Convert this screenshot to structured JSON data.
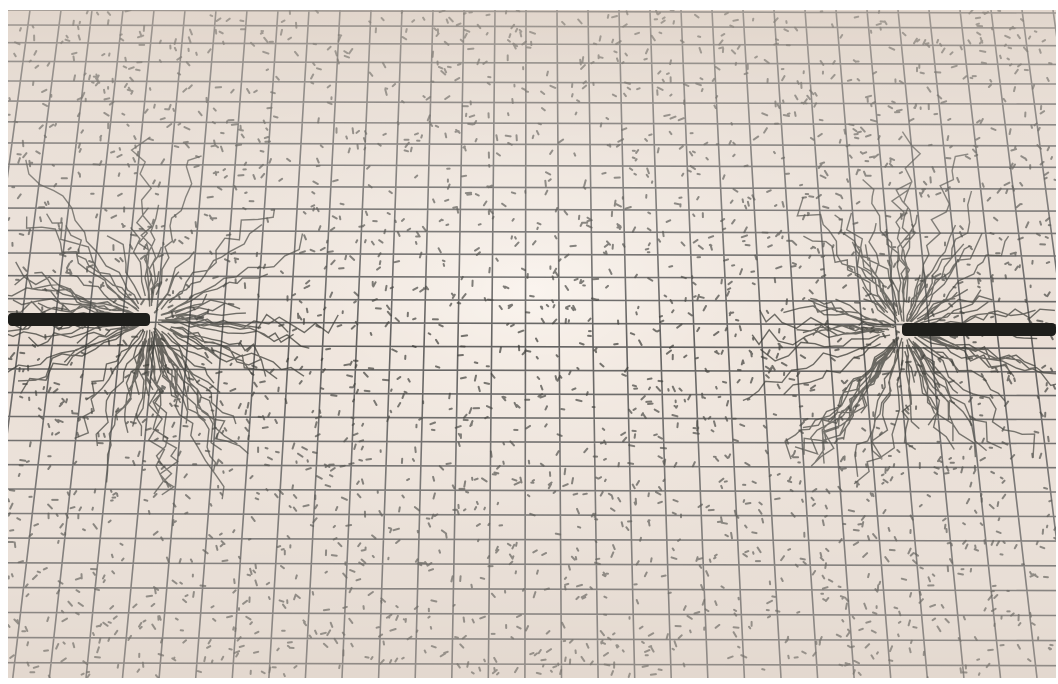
{
  "photo": {
    "subject": "electric-field-lines-between-two-electrodes",
    "colors": {
      "paper": "#eadfd6",
      "paper_center": "#f4ece4",
      "grid": "#4a4a4a",
      "particles": "#3b3b36",
      "electrode": "#1e1e1b"
    }
  }
}
